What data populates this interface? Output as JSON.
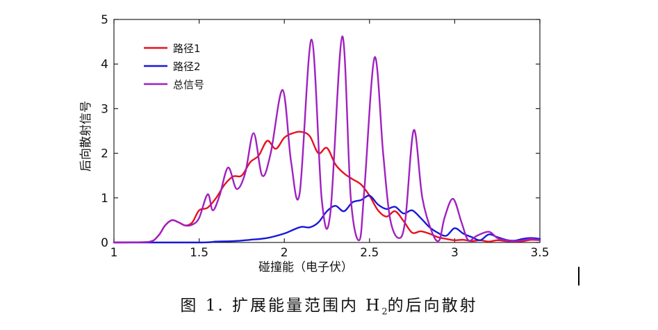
{
  "chart_data": {
    "type": "line",
    "title": "",
    "xlabel": "碰撞能（电子伏）",
    "ylabel": "后向散射信号",
    "xlim": [
      1,
      3.5
    ],
    "ylim": [
      0,
      5
    ],
    "xticks": [
      "1",
      "1.5",
      "2",
      "2.5",
      "3",
      "3.5"
    ],
    "yticks": [
      "0",
      "1",
      "2",
      "3",
      "4",
      "5"
    ],
    "grid": false,
    "legend_position": "top-left",
    "series": [
      {
        "name": "路径1",
        "color": "#e8101c",
        "x": [
          1.0,
          1.2,
          1.26,
          1.3,
          1.34,
          1.38,
          1.42,
          1.46,
          1.5,
          1.55,
          1.6,
          1.65,
          1.7,
          1.75,
          1.8,
          1.85,
          1.9,
          1.95,
          2.0,
          2.05,
          2.1,
          2.15,
          2.2,
          2.25,
          2.3,
          2.35,
          2.4,
          2.45,
          2.5,
          2.55,
          2.6,
          2.65,
          2.7,
          2.75,
          2.8,
          2.85,
          2.9,
          2.95,
          3.0,
          3.05,
          3.1,
          3.15,
          3.2,
          3.25,
          3.3,
          3.35,
          3.4,
          3.45,
          3.5
        ],
        "y": [
          0.0,
          0.01,
          0.15,
          0.38,
          0.5,
          0.45,
          0.38,
          0.45,
          0.72,
          0.78,
          1.0,
          1.3,
          1.48,
          1.5,
          1.8,
          1.95,
          2.28,
          2.1,
          2.35,
          2.45,
          2.48,
          2.38,
          2.0,
          2.12,
          1.75,
          1.55,
          1.42,
          1.3,
          1.05,
          0.72,
          0.58,
          0.7,
          0.48,
          0.22,
          0.25,
          0.2,
          0.12,
          0.08,
          0.05,
          0.06,
          0.03,
          0.05,
          0.02,
          0.05,
          0.03,
          0.02,
          0.03,
          0.06,
          0.05
        ]
      },
      {
        "name": "路径2",
        "color": "#1818d8",
        "x": [
          1.0,
          1.5,
          1.6,
          1.7,
          1.8,
          1.9,
          2.0,
          2.05,
          2.1,
          2.15,
          2.2,
          2.25,
          2.3,
          2.35,
          2.4,
          2.45,
          2.5,
          2.55,
          2.6,
          2.65,
          2.7,
          2.75,
          2.8,
          2.85,
          2.9,
          2.95,
          3.0,
          3.05,
          3.1,
          3.15,
          3.2,
          3.25,
          3.3,
          3.35,
          3.4,
          3.45,
          3.5
        ],
        "y": [
          0.0,
          0.0,
          0.02,
          0.03,
          0.06,
          0.1,
          0.2,
          0.28,
          0.35,
          0.34,
          0.45,
          0.7,
          0.82,
          0.7,
          0.9,
          0.95,
          1.05,
          0.85,
          0.75,
          0.8,
          0.65,
          0.72,
          0.55,
          0.35,
          0.22,
          0.15,
          0.32,
          0.2,
          0.12,
          0.05,
          0.18,
          0.12,
          0.06,
          0.04,
          0.08,
          0.1,
          0.08
        ]
      },
      {
        "name": "总信号",
        "color": "#a020c0",
        "x": [
          1.0,
          1.2,
          1.26,
          1.3,
          1.34,
          1.38,
          1.42,
          1.46,
          1.5,
          1.55,
          1.58,
          1.62,
          1.67,
          1.72,
          1.77,
          1.82,
          1.87,
          1.92,
          1.99,
          2.04,
          2.09,
          2.16,
          2.22,
          2.27,
          2.34,
          2.39,
          2.44,
          2.47,
          2.53,
          2.58,
          2.62,
          2.67,
          2.71,
          2.76,
          2.81,
          2.87,
          2.91,
          2.94,
          2.99,
          3.04,
          3.08,
          3.13,
          3.2,
          3.25,
          3.3,
          3.35,
          3.4,
          3.45,
          3.5
        ],
        "y": [
          0.0,
          0.01,
          0.15,
          0.38,
          0.5,
          0.45,
          0.38,
          0.4,
          0.55,
          1.08,
          0.72,
          1.05,
          1.68,
          1.2,
          1.55,
          2.45,
          1.5,
          2.0,
          3.42,
          1.8,
          1.1,
          4.55,
          0.95,
          0.65,
          4.62,
          1.0,
          0.05,
          1.2,
          4.15,
          2.0,
          0.55,
          0.1,
          0.5,
          2.52,
          1.0,
          0.2,
          0.05,
          0.55,
          0.98,
          0.45,
          0.05,
          0.15,
          0.24,
          0.1,
          0.05,
          0.03,
          0.05,
          0.08,
          0.05
        ]
      }
    ]
  },
  "caption": {
    "main": "图 1. 扩展能量范围内 H",
    "sub": "2",
    "tail": "的后向散射"
  }
}
